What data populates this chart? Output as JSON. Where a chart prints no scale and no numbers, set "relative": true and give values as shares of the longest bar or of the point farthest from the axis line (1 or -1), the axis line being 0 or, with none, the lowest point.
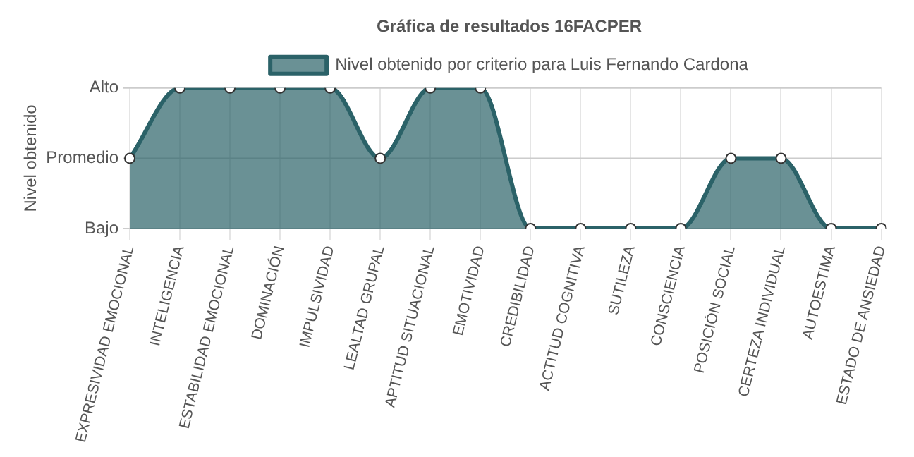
{
  "chart_data": {
    "type": "area",
    "title": "Gráfica de resultados 16FACPER",
    "ylabel": "Nivel obtenido",
    "relative": true,
    "categories": [
      "EXPRESIVIDAD EMOCIONAL",
      "INTELIGENCIA",
      "ESTABILIDAD EMOCIONAL",
      "DOMINACIÓN",
      "IMPULSIVIDAD",
      "LEALTAD GRUPAL",
      "APTITUD SITUACIONAL",
      "EMOTIVIDAD",
      "CREDIBILIDAD",
      "ACTITUD COGNITIVA",
      "SUTILEZA",
      "CONSCIENCIA",
      "POSICIÓN SOCIAL",
      "CERTEZA INDIVIDUAL",
      "AUTOESTIMA",
      "ESTADO DE ANSIEDAD"
    ],
    "series": [
      {
        "name": "Nivel obtenido por criterio para Luis Fernando Cardona",
        "color": "#2b6268",
        "values": [
          0.5,
          1,
          1,
          1,
          1,
          0.5,
          1,
          1,
          0,
          0,
          0,
          0,
          0.5,
          0.5,
          0,
          0
        ]
      }
    ],
    "ref_lines": [
      {
        "axis": "y",
        "value": 1,
        "label": "Alto",
        "color": "#cccccc"
      },
      {
        "axis": "y",
        "value": 0.5,
        "label": "Promedio",
        "color": "#cccccc"
      },
      {
        "axis": "y",
        "value": 0,
        "label": "Bajo",
        "color": "#cccccc"
      }
    ],
    "grid": "x",
    "legend": "top",
    "marker": "circle",
    "line_style": "solid"
  }
}
